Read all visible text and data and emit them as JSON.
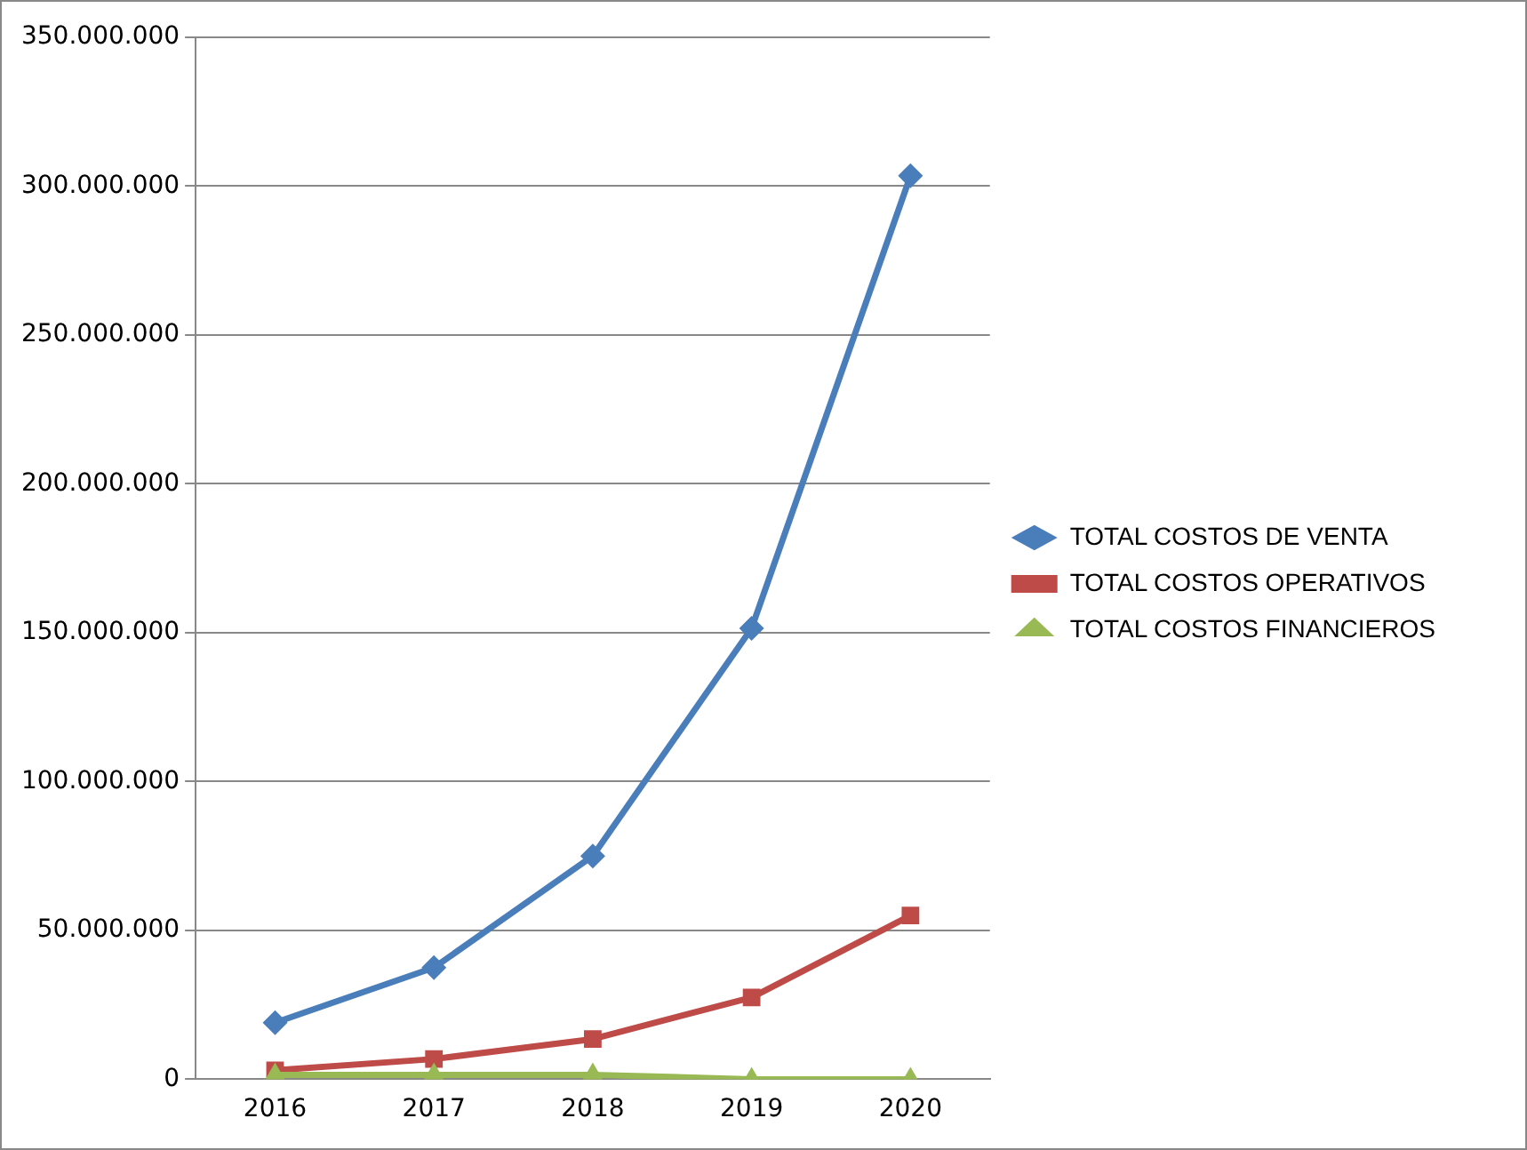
{
  "chart_data": {
    "type": "line",
    "categories": [
      "2016",
      "2017",
      "2018",
      "2019",
      "2020"
    ],
    "series": [
      {
        "name": "TOTAL COSTOS DE VENTA",
        "color": "#4a7ebb",
        "marker": "diamond",
        "values": [
          19000000,
          37500000,
          75000000,
          151500000,
          303500000
        ]
      },
      {
        "name": "TOTAL COSTOS OPERATIVOS",
        "color": "#be4b48",
        "marker": "square",
        "values": [
          3000000,
          6800000,
          13500000,
          27500000,
          55000000
        ]
      },
      {
        "name": "TOTAL COSTOS FINANCIEROS",
        "color": "#98b954",
        "marker": "triangle",
        "values": [
          1500000,
          1500000,
          1500000,
          0,
          0
        ]
      }
    ],
    "ylim": [
      0,
      350000000
    ],
    "yticks": [
      0,
      {
        "value": 50000000,
        "label": "50.000.000"
      },
      {
        "value": 100000000,
        "label": "100.000.000"
      },
      {
        "value": 150000000,
        "label": "150.000.000"
      },
      {
        "value": 200000000,
        "label": "200.000.000"
      },
      {
        "value": 250000000,
        "label": "250.000.000"
      },
      {
        "value": 300000000,
        "label": "300.000.000"
      },
      {
        "value": 350000000,
        "label": "350.000.000"
      }
    ],
    "grid": "y",
    "legend": "right",
    "line_style": "solid"
  }
}
